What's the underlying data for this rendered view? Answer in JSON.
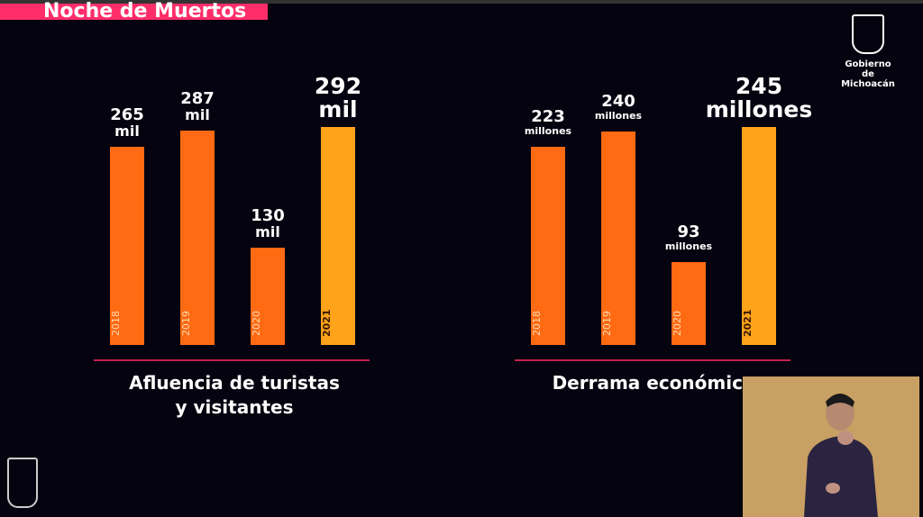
{
  "header": {
    "title": "Noche de Muertos"
  },
  "logo": {
    "line1": "Gobierno de",
    "line2": "Michoacán"
  },
  "colors": {
    "bar": "#ff6a13",
    "highlight": "#ffa31a",
    "accent": "#ff2e6a"
  },
  "chart_data": [
    {
      "type": "bar",
      "title": "Afluencia de turistas y visitantes",
      "title_lines": [
        "Afluencia de turistas",
        "y visitantes"
      ],
      "categories": [
        "2018",
        "2019",
        "2020",
        "2021"
      ],
      "values": [
        265,
        287,
        130,
        292
      ],
      "unit": "mil",
      "labels": [
        "265",
        "287",
        "130",
        "292"
      ],
      "ylim": [
        0,
        292
      ]
    },
    {
      "type": "bar",
      "title": "Derrama económica",
      "title_lines": [
        "Derrama económica"
      ],
      "categories": [
        "2018",
        "2019",
        "2020",
        "2021"
      ],
      "values": [
        223,
        240,
        93,
        245
      ],
      "unit": "millones",
      "labels": [
        "223",
        "240",
        "93",
        "245"
      ],
      "ylim": [
        0,
        245
      ]
    }
  ]
}
